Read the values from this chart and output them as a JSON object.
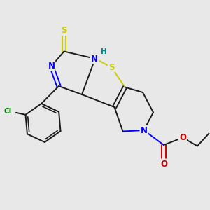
{
  "bg_color": "#e8e8e8",
  "atom_colors": {
    "S": "#cccc00",
    "N": "#0000ff",
    "O": "#cc0000",
    "C": "#000000",
    "Cl": "#008000",
    "H": "#008888"
  },
  "bond_color": "#1a1a1a"
}
